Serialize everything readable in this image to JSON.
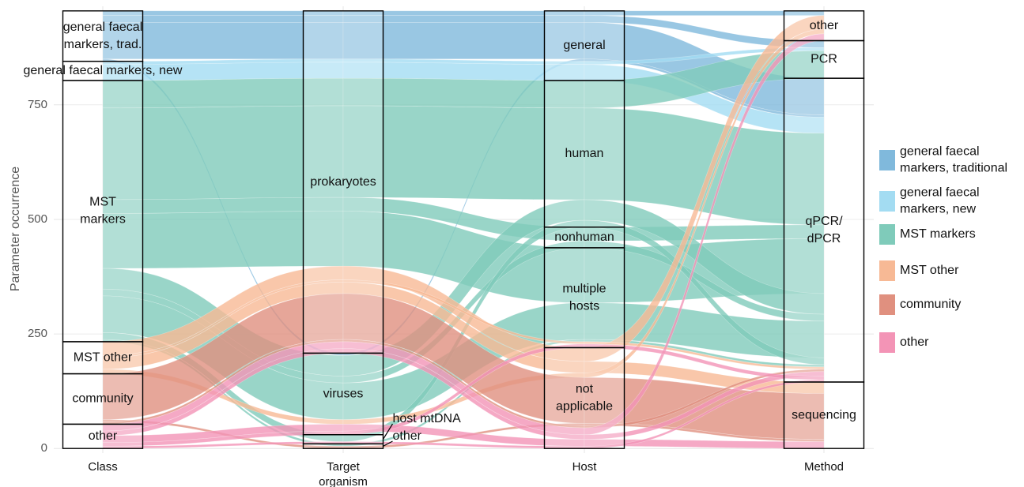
{
  "chart_data": {
    "type": "alluvial",
    "ylabel": "Parameter occurrence",
    "ylim": [
      -10,
      965
    ],
    "yticks": [
      0,
      250,
      500,
      750
    ],
    "grid": true,
    "series": [
      {
        "name": [
          "general faecal",
          "markers, traditional"
        ],
        "color": "#80b9dc"
      },
      {
        "name": [
          "general faecal",
          "markers, new"
        ],
        "color": "#a3dcf2"
      },
      {
        "name": [
          "MST markers"
        ],
        "color": "#7fcbba"
      },
      {
        "name": [
          "MST other"
        ],
        "color": "#f7b995"
      },
      {
        "name": [
          "community"
        ],
        "color": "#e0907f"
      },
      {
        "name": [
          "other"
        ],
        "color": "#f394b6"
      }
    ],
    "axes": [
      {
        "name": [
          "Class"
        ],
        "strata": [
          [
            "general faecal",
            "markers, trad."
          ],
          [
            "general faecal markers, new"
          ],
          [
            "MST",
            "markers"
          ],
          [
            "MST other"
          ],
          [
            "community"
          ],
          [
            "other"
          ]
        ]
      },
      {
        "name": [
          "Target",
          "organism"
        ],
        "strata": [
          [
            "prokaryotes"
          ],
          [
            "viruses"
          ],
          [
            "host mtDNA"
          ],
          [
            "other"
          ]
        ]
      },
      {
        "name": [
          "Host"
        ],
        "strata": [
          [
            "general"
          ],
          [
            "human"
          ],
          [
            "nonhuman"
          ],
          [
            "multiple",
            "hosts"
          ],
          [
            "not",
            "applicable"
          ]
        ]
      },
      {
        "name": [
          "Method"
        ],
        "strata": [
          [
            "other"
          ],
          [
            "PCR"
          ],
          [
            "qPCR/",
            "dPCR"
          ],
          [
            "sequencing"
          ]
        ]
      }
    ],
    "flows": [
      {
        "path": [
          0,
          0,
          0,
          0
        ],
        "value": 10
      },
      {
        "path": [
          0,
          0,
          0,
          1
        ],
        "value": 15
      },
      {
        "path": [
          0,
          0,
          0,
          2
        ],
        "value": 80
      },
      {
        "path": [
          0,
          1,
          0,
          2
        ],
        "value": 5
      },
      {
        "path": [
          1,
          0,
          0,
          1
        ],
        "value": 7
      },
      {
        "path": [
          1,
          0,
          0,
          2
        ],
        "value": 35
      },
      {
        "path": [
          2,
          0,
          1,
          1
        ],
        "value": 60
      },
      {
        "path": [
          2,
          0,
          1,
          2
        ],
        "value": 200
      },
      {
        "path": [
          2,
          0,
          2,
          2
        ],
        "value": 30
      },
      {
        "path": [
          2,
          0,
          3,
          2
        ],
        "value": 120
      },
      {
        "path": [
          2,
          1,
          1,
          2
        ],
        "value": 45
      },
      {
        "path": [
          2,
          1,
          2,
          2
        ],
        "value": 15
      },
      {
        "path": [
          2,
          1,
          3,
          2
        ],
        "value": 80
      },
      {
        "path": [
          2,
          2,
          1,
          2
        ],
        "value": 15
      },
      {
        "path": [
          2,
          3,
          3,
          2
        ],
        "value": 5
      },
      {
        "path": [
          3,
          0,
          4,
          0
        ],
        "value": 30
      },
      {
        "path": [
          3,
          0,
          3,
          2
        ],
        "value": 5
      },
      {
        "path": [
          3,
          0,
          4,
          3
        ],
        "value": 25
      },
      {
        "path": [
          3,
          1,
          4,
          0
        ],
        "value": 10
      },
      {
        "path": [
          4,
          0,
          4,
          3
        ],
        "value": 100
      },
      {
        "path": [
          4,
          3,
          4,
          3
        ],
        "value": 5
      },
      {
        "path": [
          4,
          0,
          4,
          2
        ],
        "value": 5
      },
      {
        "path": [
          5,
          0,
          4,
          0
        ],
        "value": 15
      },
      {
        "path": [
          5,
          0,
          4,
          2
        ],
        "value": 10
      },
      {
        "path": [
          5,
          1,
          4,
          3
        ],
        "value": 15
      },
      {
        "path": [
          5,
          1,
          3,
          2
        ],
        "value": 8
      },
      {
        "path": [
          5,
          2,
          4,
          2
        ],
        "value": 5
      }
    ]
  }
}
